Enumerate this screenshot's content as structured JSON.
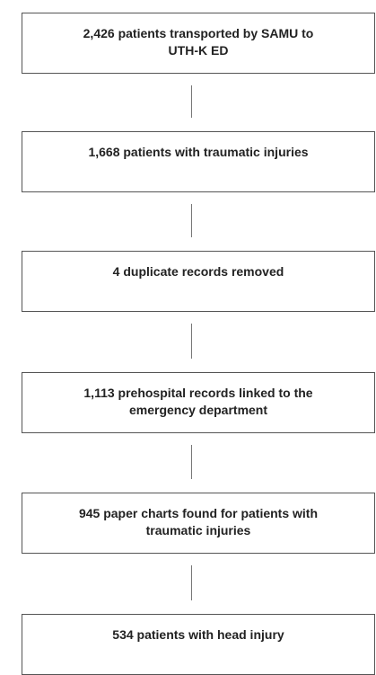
{
  "nodes": [
    {
      "lines": [
        "2,426 patients transported by SAMU to",
        "UTH-K ED"
      ]
    },
    {
      "lines": [
        "1,668 patients with traumatic injuries"
      ]
    },
    {
      "lines": [
        "4 duplicate records removed"
      ]
    },
    {
      "lines": [
        "1,113 prehospital records linked to the",
        "emergency department"
      ]
    },
    {
      "lines": [
        "945 paper charts found for patients with",
        "traumatic injuries"
      ]
    },
    {
      "lines": [
        "534 patients with head injury"
      ]
    }
  ]
}
